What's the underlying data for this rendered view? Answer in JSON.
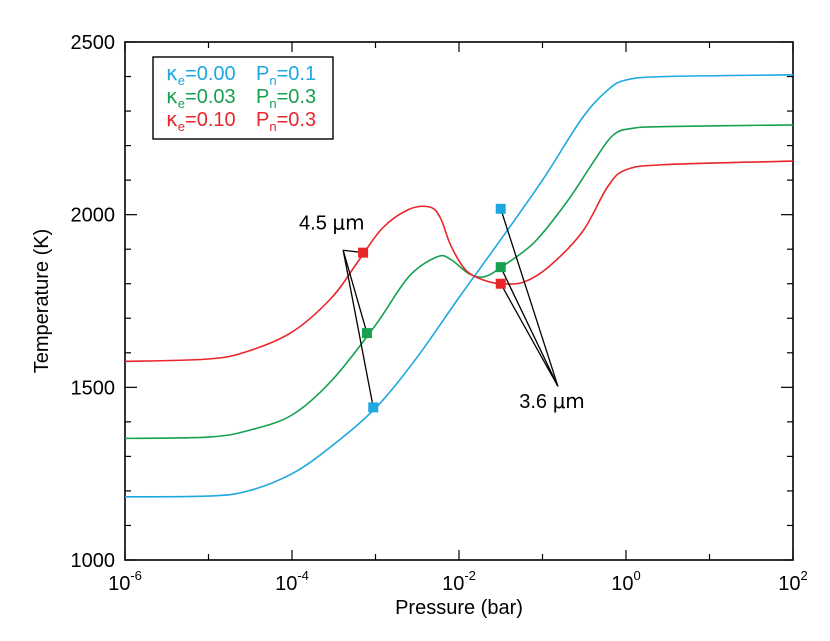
{
  "chart_data": {
    "type": "line",
    "xlabel": "Pressure (bar)",
    "ylabel": "Temperature (K)",
    "x_scale": "log",
    "xlim": [
      1e-06,
      100
    ],
    "ylim": [
      1000,
      2500
    ],
    "grid": false,
    "legend_position": "top-left",
    "x_ticks": [
      {
        "value": 1e-06,
        "base": "10",
        "exp": "-6"
      },
      {
        "value": 0.0001,
        "base": "10",
        "exp": "-4"
      },
      {
        "value": 0.01,
        "base": "10",
        "exp": "-2"
      },
      {
        "value": 1,
        "base": "10",
        "exp": "0"
      },
      {
        "value": 100,
        "base": "10",
        "exp": "2"
      }
    ],
    "y_ticks": [
      {
        "value": 1000,
        "label": "1000"
      },
      {
        "value": 1500,
        "label": "1500"
      },
      {
        "value": 2000,
        "label": "2000"
      },
      {
        "value": 2500,
        "label": "2500"
      }
    ],
    "series": [
      {
        "legend": {
          "kappa": "κ",
          "kappa_sub": "e",
          "kappa_val": "=0.00",
          "p": "P",
          "p_sub": "n",
          "p_val": "=0.1"
        },
        "color": "#1ea8df",
        "points": [
          [
            1e-06,
            1183
          ],
          [
            1e-05,
            1185
          ],
          [
            3e-05,
            1200
          ],
          [
            0.0001,
            1250
          ],
          [
            0.0003,
            1330
          ],
          [
            0.001,
            1440
          ],
          [
            0.003,
            1580
          ],
          [
            0.01,
            1760
          ],
          [
            0.03,
            1920
          ],
          [
            0.1,
            2100
          ],
          [
            0.3,
            2280
          ],
          [
            0.6,
            2360
          ],
          [
            1,
            2390
          ],
          [
            3,
            2400
          ],
          [
            100,
            2405
          ]
        ],
        "markers": [
          [
            0.00094,
            1442
          ],
          [
            0.0316,
            2017
          ]
        ]
      },
      {
        "legend": {
          "kappa": "κ",
          "kappa_sub": "e",
          "kappa_val": "=0.03",
          "p": "P",
          "p_sub": "n",
          "p_val": "=0.3"
        },
        "color": "#17a050",
        "points": [
          [
            1e-06,
            1352
          ],
          [
            1e-05,
            1356
          ],
          [
            3e-05,
            1375
          ],
          [
            0.0001,
            1420
          ],
          [
            0.0003,
            1520
          ],
          [
            0.001,
            1680
          ],
          [
            0.0025,
            1820
          ],
          [
            0.0055,
            1878
          ],
          [
            0.008,
            1870
          ],
          [
            0.013,
            1830
          ],
          [
            0.02,
            1820
          ],
          [
            0.032,
            1848
          ],
          [
            0.08,
            1920
          ],
          [
            0.2,
            2040
          ],
          [
            0.4,
            2150
          ],
          [
            0.7,
            2230
          ],
          [
            1.2,
            2250
          ],
          [
            3,
            2255
          ],
          [
            100,
            2260
          ]
        ],
        "markers": [
          [
            0.00079,
            1657
          ],
          [
            0.0316,
            1848
          ]
        ]
      },
      {
        "legend": {
          "kappa": "κ",
          "kappa_sub": "e",
          "kappa_val": "=0.10",
          "p": "P",
          "p_sub": "n",
          "p_val": "=0.3"
        },
        "color": "#e8262c",
        "points": [
          [
            1e-06,
            1575
          ],
          [
            1e-05,
            1582
          ],
          [
            3e-05,
            1605
          ],
          [
            0.0001,
            1660
          ],
          [
            0.0003,
            1760
          ],
          [
            0.0006,
            1860
          ],
          [
            0.0012,
            1960
          ],
          [
            0.0025,
            2015
          ],
          [
            0.0045,
            2022
          ],
          [
            0.006,
            1990
          ],
          [
            0.008,
            1910
          ],
          [
            0.012,
            1840
          ],
          [
            0.02,
            1810
          ],
          [
            0.032,
            1800
          ],
          [
            0.06,
            1805
          ],
          [
            0.12,
            1850
          ],
          [
            0.3,
            1950
          ],
          [
            0.6,
            2080
          ],
          [
            1,
            2130
          ],
          [
            3,
            2145
          ],
          [
            100,
            2155
          ]
        ],
        "markers": [
          [
            0.00071,
            1890
          ],
          [
            0.0316,
            1800
          ]
        ]
      }
    ],
    "annotations": [
      {
        "text_main": "4.5 ",
        "text_unit": "μm",
        "label_at": [
          0.0003,
          1957
        ],
        "pointer_from": [
          0.00041,
          1897
        ],
        "pointer_to": [
          [
            0.00071,
            1890
          ],
          [
            0.00079,
            1657
          ],
          [
            0.00094,
            1442
          ]
        ]
      },
      {
        "text_main": "3.6 ",
        "text_unit": "μm",
        "label_at": [
          0.13,
          1440
        ],
        "pointer_from": [
          0.153,
          1503
        ],
        "pointer_to": [
          [
            0.0316,
            2017
          ],
          [
            0.0316,
            1848
          ],
          [
            0.0316,
            1800
          ]
        ]
      }
    ]
  }
}
